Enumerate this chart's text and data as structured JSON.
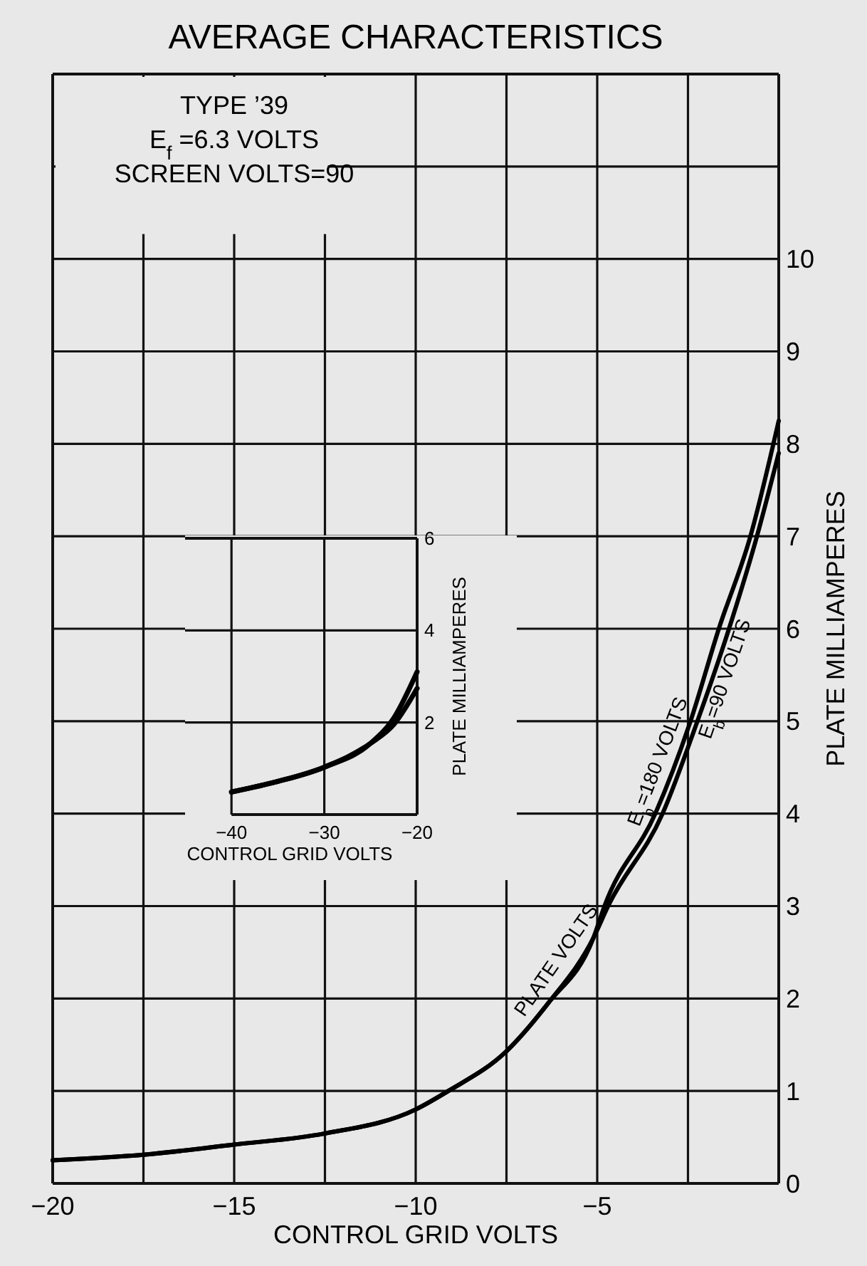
{
  "chart_data": [
    {
      "type": "line",
      "title": "AVERAGE CHARACTERISTICS",
      "xlabel": "CONTROL GRID VOLTS",
      "ylabel": "PLATE MILLIAMPERES",
      "annotations": [
        "TYPE ’39",
        "E$_{f}$ =6.3 VOLTS",
        "SCREEN VOLTS=90",
        "PLATE VOLTS"
      ],
      "xlim": [
        -20,
        0
      ],
      "ylim": [
        0,
        12
      ],
      "xticks": [
        -20,
        {
          "value": -17.5,
          "label": null
        },
        -15,
        {
          "value": -12.5,
          "label": null
        },
        -10,
        {
          "value": -7.5,
          "label": null
        },
        -5,
        {
          "value": -2.5,
          "label": null
        },
        {
          "value": 0,
          "label": null
        }
      ],
      "yticks": [
        0,
        1,
        2,
        3,
        4,
        5,
        6,
        7,
        8,
        9,
        10,
        {
          "value": 11,
          "label": null
        }
      ],
      "grid": true,
      "marker": "none",
      "line_style": "solid",
      "series": [
        {
          "name": "E$_{b}$=180 VOLTS",
          "color": "#000000",
          "x": [
            -20,
            -17.5,
            -15,
            -12.5,
            -10,
            -9.1,
            -7.5,
            -6.35,
            -5.1,
            -4.8,
            -3.4,
            -2.43,
            -1.65,
            -0.78,
            0
          ],
          "values": [
            0.25,
            0.31,
            0.42,
            0.54,
            0.8,
            1.0,
            1.43,
            1.95,
            2.66,
            3,
            4,
            5,
            6,
            7,
            8.25
          ]
        },
        {
          "name": "E$_{b}$=90 VOLTS",
          "color": "#000000",
          "x": [
            -20,
            -17.5,
            -15,
            -12.5,
            -10,
            -9.1,
            -7.5,
            -6.35,
            -5.1,
            -4.7,
            -3.2,
            -2.24,
            -1.37,
            -0.6,
            0
          ],
          "values": [
            0.25,
            0.31,
            0.42,
            0.54,
            0.8,
            1.0,
            1.43,
            1.95,
            2.66,
            3,
            4,
            5,
            6,
            7,
            7.9
          ]
        }
      ]
    },
    {
      "type": "line",
      "xlabel": "CONTROL GRID VOLTS",
      "ylabel": "PLATE MILLIAMPERES",
      "xlim": [
        -45,
        -20
      ],
      "ylim": [
        0,
        6
      ],
      "xticks": [
        -40,
        -30,
        -20
      ],
      "yticks": [
        2,
        4,
        6
      ],
      "grid": true,
      "marker": "none",
      "line_style": "solid",
      "series": [
        {
          "color": "#000000",
          "x": [
            -40,
            -35,
            -30,
            -25,
            -22.5,
            -20
          ],
          "values": [
            0.49,
            0.72,
            1.03,
            1.55,
            2.1,
            3.1
          ]
        },
        {
          "color": "#000000",
          "x": [
            -40,
            -35,
            -30,
            -25,
            -22.5,
            -20
          ],
          "values": [
            0.49,
            0.72,
            1.03,
            1.55,
            1.96,
            2.74
          ]
        }
      ]
    }
  ]
}
